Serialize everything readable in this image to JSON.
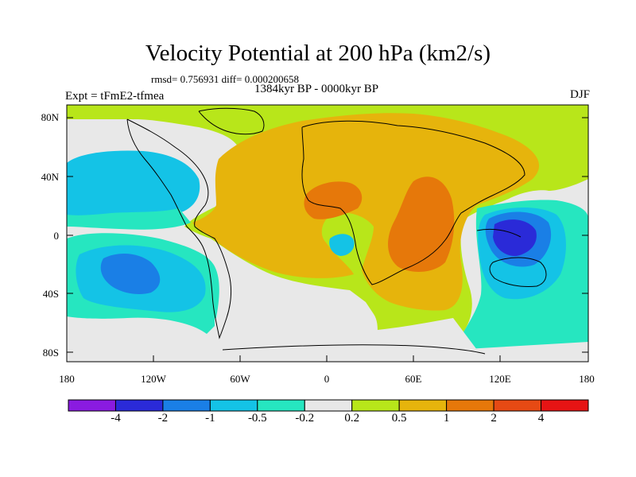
{
  "title": "Velocity Potential at 200 hPa (km2/s)",
  "stats": "rmsd= 0.756931 diff= 0.000200658",
  "experiment": "Expt = tFmE2-tfmea",
  "period": "1384kyr BP - 0000kyr BP",
  "season": "DJF",
  "lat_labels": [
    "80N",
    "40N",
    "0",
    "40S",
    "80S"
  ],
  "lon_labels": [
    "180",
    "120W",
    "60W",
    "0",
    "60E",
    "120E",
    "180"
  ],
  "colorbar": {
    "labels": [
      "-4",
      "-2",
      "-1",
      "-0.5",
      "-0.2",
      "0.2",
      "0.5",
      "1",
      "2",
      "4"
    ],
    "colors": [
      "#8a1be0",
      "#2a2ad8",
      "#1a7fe6",
      "#14c3e6",
      "#26e6c0",
      "#e8e8e8",
      "#b8e61a",
      "#e6b40c",
      "#e6780a",
      "#e64a14",
      "#e61414"
    ]
  },
  "map_colors": {
    "bg": "#e8e8e8",
    "green": "#b8e61a",
    "gold": "#e6b40c",
    "orange": "#e6780a",
    "cyan": "#14c3e6",
    "teal": "#26e6c0",
    "blue": "#1a7fe6",
    "darkblue": "#2a2ad8",
    "purple": "#8a1be0"
  }
}
